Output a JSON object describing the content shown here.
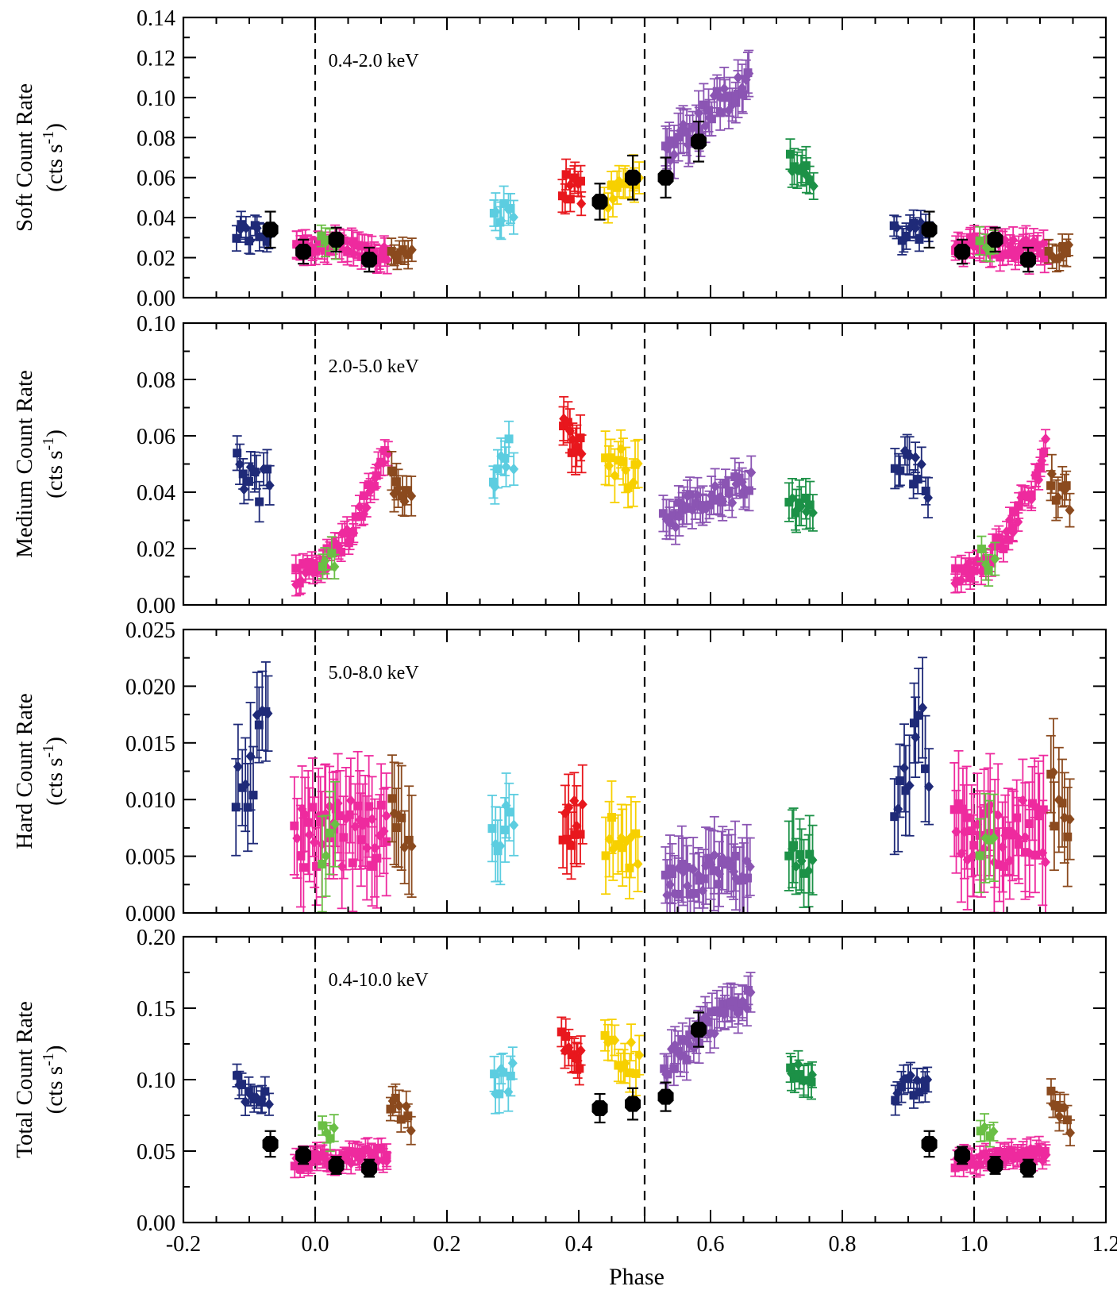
{
  "chart_data": [
    {
      "type": "scatter",
      "title": "",
      "annotation": "0.4-2.0 keV",
      "ylabel": "Soft Count Rate",
      "yunit": "(cts s",
      "yunit_exp": "-1",
      "yunit_close": ")",
      "xlim": [
        -0.2,
        1.2
      ],
      "ylim": [
        0.0,
        0.14
      ],
      "yticks": [
        0.0,
        0.02,
        0.04,
        0.06,
        0.08,
        0.1,
        0.12,
        0.14
      ],
      "yticklabels": [
        "0.00",
        "0.02",
        "0.04",
        "0.06",
        "0.08",
        "0.10",
        "0.12",
        "0.14"
      ],
      "dashed_lines_x": [
        0.0,
        0.5,
        1.0
      ],
      "series": [
        {
          "color": "#1f2a78",
          "x_range": [
            -0.12,
            -0.07
          ],
          "y_center": 0.032,
          "y_spread": 0.006,
          "err": 0.006,
          "n": 12,
          "trend": 0
        },
        {
          "color": "#ee2a9e",
          "x_range": [
            -0.03,
            0.11
          ],
          "y_center": 0.025,
          "y_spread": 0.005,
          "err": 0.006,
          "n": 46,
          "trend": -0.004
        },
        {
          "color": "#6abf45",
          "x_range": [
            0.01,
            0.03
          ],
          "y_center": 0.027,
          "y_spread": 0.004,
          "err": 0.006,
          "n": 4,
          "trend": 0
        },
        {
          "color": "#8b4a1e",
          "x_range": [
            0.115,
            0.145
          ],
          "y_center": 0.023,
          "y_spread": 0.004,
          "err": 0.006,
          "n": 8,
          "trend": 0
        },
        {
          "color": "#5ccde0",
          "x_range": [
            0.27,
            0.3
          ],
          "y_center": 0.042,
          "y_spread": 0.006,
          "err": 0.008,
          "n": 8,
          "trend": -0.006
        },
        {
          "color": "#e8171d",
          "x_range": [
            0.375,
            0.405
          ],
          "y_center": 0.055,
          "y_spread": 0.008,
          "err": 0.007,
          "n": 10,
          "trend": -0.005
        },
        {
          "color": "#f7d000",
          "x_range": [
            0.44,
            0.49
          ],
          "y_center": 0.055,
          "y_spread": 0.006,
          "err": 0.008,
          "n": 12,
          "trend": 0.012
        },
        {
          "color": "#8b55b3",
          "x_range": [
            0.53,
            0.66
          ],
          "y_center": 0.092,
          "y_spread": 0.008,
          "err": 0.01,
          "n": 40,
          "trend": 0.038
        },
        {
          "color": "#1c9147",
          "x_range": [
            0.72,
            0.755
          ],
          "y_center": 0.063,
          "y_spread": 0.005,
          "err": 0.008,
          "n": 10,
          "trend": -0.01
        },
        {
          "color": "#1f2a78",
          "x_range": [
            0.88,
            0.93
          ],
          "y_center": 0.032,
          "y_spread": 0.006,
          "err": 0.006,
          "n": 12,
          "trend": 0
        },
        {
          "color": "#ee2a9e",
          "x_range": [
            0.97,
            1.11
          ],
          "y_center": 0.025,
          "y_spread": 0.005,
          "err": 0.006,
          "n": 46,
          "trend": -0.004
        },
        {
          "color": "#6abf45",
          "x_range": [
            1.01,
            1.03
          ],
          "y_center": 0.027,
          "y_spread": 0.004,
          "err": 0.006,
          "n": 4,
          "trend": 0
        },
        {
          "color": "#8b4a1e",
          "x_range": [
            1.115,
            1.145
          ],
          "y_center": 0.023,
          "y_spread": 0.004,
          "err": 0.006,
          "n": 8,
          "trend": 0
        }
      ],
      "black_points": {
        "x": [
          -0.068,
          -0.018,
          0.032,
          0.082,
          0.432,
          0.482,
          0.532,
          0.582,
          0.932,
          0.982,
          1.032,
          1.082
        ],
        "y": [
          0.034,
          0.023,
          0.029,
          0.019,
          0.048,
          0.06,
          0.06,
          0.078,
          0.034,
          0.023,
          0.029,
          0.019
        ],
        "err": [
          0.009,
          0.006,
          0.006,
          0.006,
          0.009,
          0.011,
          0.01,
          0.01,
          0.009,
          0.006,
          0.006,
          0.006
        ]
      }
    },
    {
      "type": "scatter",
      "title": "",
      "annotation": "2.0-5.0 keV",
      "ylabel": "Medium Count Rate",
      "yunit": "(cts s",
      "yunit_exp": "-1",
      "yunit_close": ")",
      "xlim": [
        -0.2,
        1.2
      ],
      "ylim": [
        0.0,
        0.1
      ],
      "yticks": [
        0.0,
        0.02,
        0.04,
        0.06,
        0.08,
        0.1
      ],
      "yticklabels": [
        "0.00",
        "0.02",
        "0.04",
        "0.06",
        "0.08",
        "0.10"
      ],
      "dashed_lines_x": [
        0.0,
        0.5,
        1.0
      ],
      "series": [
        {
          "color": "#1f2a78",
          "x_range": [
            -0.12,
            -0.07
          ],
          "y_center": 0.046,
          "y_spread": 0.008,
          "err": 0.006,
          "n": 12,
          "trend": -0.008
        },
        {
          "color": "#ee2a9e",
          "x_range": [
            -0.03,
            0.11
          ],
          "y_center": 0.019,
          "y_spread": 0.004,
          "err": 0.004,
          "n": 46,
          "trend": 0.018,
          "curve": 0.05
        },
        {
          "color": "#6abf45",
          "x_range": [
            0.01,
            0.03
          ],
          "y_center": 0.016,
          "y_spread": 0.004,
          "err": 0.005,
          "n": 4,
          "trend": 0
        },
        {
          "color": "#8b4a1e",
          "x_range": [
            0.115,
            0.145
          ],
          "y_center": 0.04,
          "y_spread": 0.005,
          "err": 0.006,
          "n": 8,
          "trend": -0.006
        },
        {
          "color": "#5ccde0",
          "x_range": [
            0.27,
            0.3
          ],
          "y_center": 0.05,
          "y_spread": 0.007,
          "err": 0.007,
          "n": 8,
          "trend": 0.01
        },
        {
          "color": "#e8171d",
          "x_range": [
            0.375,
            0.405
          ],
          "y_center": 0.058,
          "y_spread": 0.005,
          "err": 0.007,
          "n": 10,
          "trend": -0.008
        },
        {
          "color": "#f7d000",
          "x_range": [
            0.44,
            0.49
          ],
          "y_center": 0.049,
          "y_spread": 0.007,
          "err": 0.008,
          "n": 12,
          "trend": -0.004
        },
        {
          "color": "#8b55b3",
          "x_range": [
            0.53,
            0.66
          ],
          "y_center": 0.037,
          "y_spread": 0.005,
          "err": 0.006,
          "n": 40,
          "trend": 0.012
        },
        {
          "color": "#1c9147",
          "x_range": [
            0.72,
            0.755
          ],
          "y_center": 0.034,
          "y_spread": 0.005,
          "err": 0.007,
          "n": 10,
          "trend": 0
        },
        {
          "color": "#1f2a78",
          "x_range": [
            0.88,
            0.93
          ],
          "y_center": 0.046,
          "y_spread": 0.008,
          "err": 0.006,
          "n": 12,
          "trend": -0.008
        },
        {
          "color": "#ee2a9e",
          "x_range": [
            0.97,
            1.11
          ],
          "y_center": 0.019,
          "y_spread": 0.004,
          "err": 0.004,
          "n": 46,
          "trend": 0.018,
          "curve": 0.05
        },
        {
          "color": "#6abf45",
          "x_range": [
            1.01,
            1.03
          ],
          "y_center": 0.016,
          "y_spread": 0.004,
          "err": 0.005,
          "n": 4,
          "trend": 0
        },
        {
          "color": "#8b4a1e",
          "x_range": [
            1.115,
            1.145
          ],
          "y_center": 0.04,
          "y_spread": 0.005,
          "err": 0.006,
          "n": 8,
          "trend": -0.006
        }
      ]
    },
    {
      "type": "scatter",
      "title": "",
      "annotation": "5.0-8.0 keV",
      "ylabel": "Hard Count Rate",
      "yunit": "(cts s",
      "yunit_exp": "-1",
      "yunit_close": ")",
      "xlim": [
        -0.2,
        1.2
      ],
      "ylim": [
        0.0,
        0.025
      ],
      "yticks": [
        0.0,
        0.005,
        0.01,
        0.015,
        0.02,
        0.025
      ],
      "yticklabels": [
        "0.000",
        "0.005",
        "0.010",
        "0.015",
        "0.020",
        "0.025"
      ],
      "dashed_lines_x": [
        0.0,
        0.5,
        1.0
      ],
      "series": [
        {
          "color": "#1f2a78",
          "x_range": [
            -0.12,
            -0.07
          ],
          "y_center": 0.013,
          "y_spread": 0.004,
          "err": 0.004,
          "n": 12,
          "trend": 0.004
        },
        {
          "color": "#ee2a9e",
          "x_range": [
            -0.03,
            0.11
          ],
          "y_center": 0.007,
          "y_spread": 0.003,
          "err": 0.004,
          "n": 46,
          "trend": 0
        },
        {
          "color": "#6abf45",
          "x_range": [
            0.01,
            0.03
          ],
          "y_center": 0.006,
          "y_spread": 0.002,
          "err": 0.004,
          "n": 4,
          "trend": 0
        },
        {
          "color": "#8b4a1e",
          "x_range": [
            0.115,
            0.145
          ],
          "y_center": 0.009,
          "y_spread": 0.003,
          "err": 0.004,
          "n": 8,
          "trend": -0.004
        },
        {
          "color": "#5ccde0",
          "x_range": [
            0.27,
            0.3
          ],
          "y_center": 0.0075,
          "y_spread": 0.002,
          "err": 0.003,
          "n": 8,
          "trend": 0.002
        },
        {
          "color": "#e8171d",
          "x_range": [
            0.375,
            0.405
          ],
          "y_center": 0.008,
          "y_spread": 0.002,
          "err": 0.003,
          "n": 10,
          "trend": 0.002
        },
        {
          "color": "#f7d000",
          "x_range": [
            0.44,
            0.49
          ],
          "y_center": 0.006,
          "y_spread": 0.002,
          "err": 0.003,
          "n": 12,
          "trend": -0.002
        },
        {
          "color": "#8b55b3",
          "x_range": [
            0.53,
            0.66
          ],
          "y_center": 0.0035,
          "y_spread": 0.0015,
          "err": 0.003,
          "n": 40,
          "trend": 0.002
        },
        {
          "color": "#1c9147",
          "x_range": [
            0.72,
            0.755
          ],
          "y_center": 0.0045,
          "y_spread": 0.0015,
          "err": 0.003,
          "n": 10,
          "trend": 0
        },
        {
          "color": "#1f2a78",
          "x_range": [
            0.88,
            0.93
          ],
          "y_center": 0.013,
          "y_spread": 0.004,
          "err": 0.004,
          "n": 12,
          "trend": 0.004
        },
        {
          "color": "#ee2a9e",
          "x_range": [
            0.97,
            1.11
          ],
          "y_center": 0.007,
          "y_spread": 0.003,
          "err": 0.004,
          "n": 46,
          "trend": 0
        },
        {
          "color": "#6abf45",
          "x_range": [
            1.01,
            1.03
          ],
          "y_center": 0.006,
          "y_spread": 0.002,
          "err": 0.004,
          "n": 4,
          "trend": 0
        },
        {
          "color": "#8b4a1e",
          "x_range": [
            1.115,
            1.145
          ],
          "y_center": 0.009,
          "y_spread": 0.003,
          "err": 0.004,
          "n": 8,
          "trend": -0.004
        }
      ]
    },
    {
      "type": "scatter",
      "title": "",
      "annotation": "0.4-10.0 keV",
      "ylabel": "Total Count Rate",
      "yunit": "(cts s",
      "yunit_exp": "-1",
      "yunit_close": ")",
      "xlabel": "Phase",
      "xlim": [
        -0.2,
        1.2
      ],
      "ylim": [
        0.0,
        0.2
      ],
      "xticks": [
        -0.2,
        0.0,
        0.2,
        0.4,
        0.6,
        0.8,
        1.0,
        1.2
      ],
      "xticklabels": [
        "-0.2",
        "0.0",
        "0.2",
        "0.4",
        "0.6",
        "0.8",
        "1.0",
        "1.2"
      ],
      "yticks": [
        0.0,
        0.05,
        0.1,
        0.15,
        0.2
      ],
      "yticklabels": [
        "0.00",
        "0.05",
        "0.10",
        "0.15",
        "0.20"
      ],
      "dashed_lines_x": [
        0.0,
        0.5,
        1.0
      ],
      "series": [
        {
          "color": "#1f2a78",
          "x_range": [
            -0.12,
            -0.07
          ],
          "y_center": 0.093,
          "y_spread": 0.01,
          "err": 0.009,
          "n": 12,
          "trend": -0.005
        },
        {
          "color": "#ee2a9e",
          "x_range": [
            -0.03,
            0.11
          ],
          "y_center": 0.045,
          "y_spread": 0.005,
          "err": 0.007,
          "n": 46,
          "trend": 0.006
        },
        {
          "color": "#6abf45",
          "x_range": [
            0.01,
            0.03
          ],
          "y_center": 0.062,
          "y_spread": 0.006,
          "err": 0.008,
          "n": 4,
          "trend": 0
        },
        {
          "color": "#8b4a1e",
          "x_range": [
            0.115,
            0.145
          ],
          "y_center": 0.078,
          "y_spread": 0.008,
          "err": 0.009,
          "n": 8,
          "trend": -0.015
        },
        {
          "color": "#5ccde0",
          "x_range": [
            0.27,
            0.3
          ],
          "y_center": 0.1,
          "y_spread": 0.01,
          "err": 0.012,
          "n": 8,
          "trend": 0.005
        },
        {
          "color": "#e8171d",
          "x_range": [
            0.375,
            0.405
          ],
          "y_center": 0.12,
          "y_spread": 0.008,
          "err": 0.012,
          "n": 10,
          "trend": -0.012
        },
        {
          "color": "#f7d000",
          "x_range": [
            0.44,
            0.49
          ],
          "y_center": 0.118,
          "y_spread": 0.012,
          "err": 0.013,
          "n": 12,
          "trend": -0.01
        },
        {
          "color": "#8b55b3",
          "x_range": [
            0.53,
            0.66
          ],
          "y_center": 0.135,
          "y_spread": 0.01,
          "err": 0.012,
          "n": 40,
          "trend": 0.05
        },
        {
          "color": "#1c9147",
          "x_range": [
            0.72,
            0.755
          ],
          "y_center": 0.103,
          "y_spread": 0.007,
          "err": 0.01,
          "n": 10,
          "trend": -0.012
        },
        {
          "color": "#1f2a78",
          "x_range": [
            0.88,
            0.93
          ],
          "y_center": 0.093,
          "y_spread": 0.01,
          "err": 0.009,
          "n": 12,
          "trend": -0.005
        },
        {
          "color": "#ee2a9e",
          "x_range": [
            0.97,
            1.11
          ],
          "y_center": 0.045,
          "y_spread": 0.005,
          "err": 0.007,
          "n": 46,
          "trend": 0.006
        },
        {
          "color": "#6abf45",
          "x_range": [
            1.01,
            1.03
          ],
          "y_center": 0.062,
          "y_spread": 0.006,
          "err": 0.008,
          "n": 4,
          "trend": 0
        },
        {
          "color": "#8b4a1e",
          "x_range": [
            1.115,
            1.145
          ],
          "y_center": 0.078,
          "y_spread": 0.008,
          "err": 0.009,
          "n": 8,
          "trend": -0.015
        }
      ],
      "black_points": {
        "x": [
          -0.068,
          -0.018,
          0.032,
          0.082,
          0.432,
          0.482,
          0.532,
          0.582,
          0.932,
          0.982,
          1.032,
          1.082
        ],
        "y": [
          0.055,
          0.047,
          0.04,
          0.038,
          0.08,
          0.083,
          0.088,
          0.135,
          0.055,
          0.047,
          0.04,
          0.038
        ],
        "err": [
          0.009,
          0.006,
          0.006,
          0.006,
          0.01,
          0.011,
          0.01,
          0.012,
          0.009,
          0.006,
          0.006,
          0.006
        ]
      }
    }
  ]
}
